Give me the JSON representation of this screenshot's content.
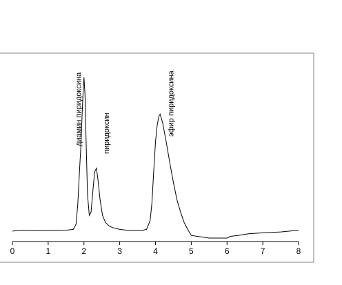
{
  "chart_data": {
    "type": "line",
    "title": "",
    "xlabel": "",
    "ylabel": "",
    "xlim": [
      0,
      8
    ],
    "ylim": [
      0,
      1
    ],
    "x_ticks": [
      0,
      1,
      2,
      3,
      4,
      5,
      6,
      7,
      8
    ],
    "grid": false,
    "legend": "none",
    "colors": {
      "line": "#000000",
      "frame": "#808080",
      "axis": "#000000"
    },
    "series": [
      {
        "x": [
          0,
          0.3,
          0.6,
          0.9,
          1.2,
          1.5,
          1.7,
          1.78,
          1.83,
          1.88,
          1.92,
          1.95,
          1.98,
          2.0,
          2.03,
          2.06,
          2.1,
          2.15,
          2.2,
          2.25,
          2.3,
          2.35,
          2.4,
          2.45,
          2.52,
          2.6,
          2.7,
          2.8,
          3.0,
          3.2,
          3.4,
          3.6,
          3.75,
          3.85,
          3.9,
          3.95,
          4.0,
          4.05,
          4.1,
          4.13,
          4.2,
          4.3,
          4.4,
          4.5,
          4.6,
          4.7,
          4.8,
          4.9,
          5.0,
          5.5,
          6.0,
          6.1,
          6.3,
          6.6,
          7.0,
          7.5,
          8.0
        ],
        "y": [
          0.04,
          0.045,
          0.042,
          0.043,
          0.044,
          0.045,
          0.05,
          0.08,
          0.2,
          0.4,
          0.55,
          0.72,
          0.85,
          0.92,
          0.82,
          0.55,
          0.25,
          0.13,
          0.15,
          0.27,
          0.38,
          0.4,
          0.32,
          0.22,
          0.13,
          0.09,
          0.07,
          0.06,
          0.05,
          0.045,
          0.043,
          0.043,
          0.05,
          0.1,
          0.2,
          0.38,
          0.55,
          0.65,
          0.7,
          0.71,
          0.66,
          0.55,
          0.43,
          0.32,
          0.22,
          0.15,
          0.09,
          0.05,
          0.015,
          0.0,
          0.0,
          0.01,
          0.015,
          0.025,
          0.03,
          0.035,
          0.045
        ]
      }
    ],
    "annotations": [
      {
        "text": "диамин пиридоксина",
        "x": 1.92
      },
      {
        "text": "пиридоксин",
        "x": 2.7
      },
      {
        "text": "эфир пиридоксина",
        "x": 4.5
      }
    ]
  }
}
